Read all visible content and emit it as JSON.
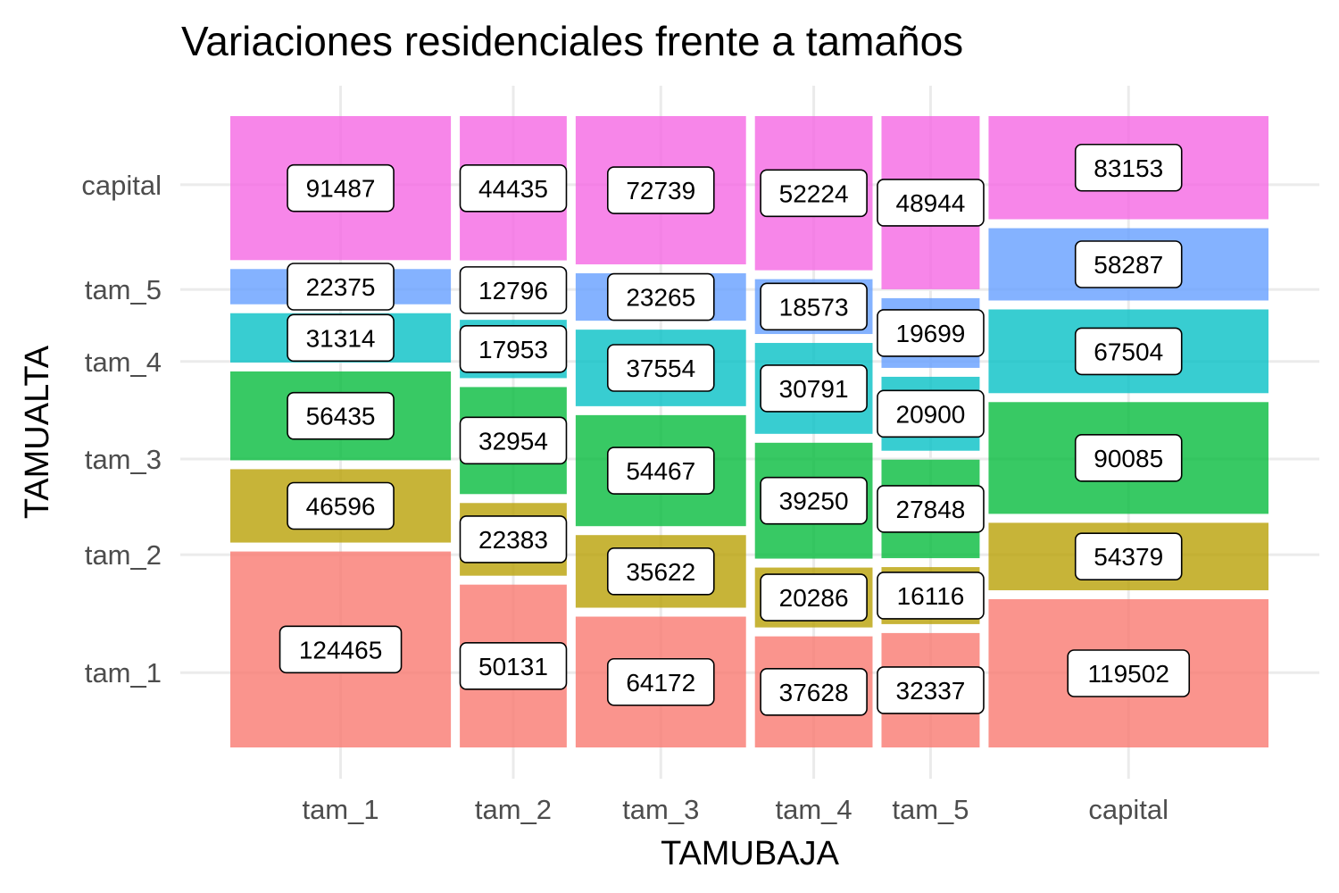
{
  "chart_data": {
    "type": "mosaic",
    "title": "Variaciones residenciales frente a tamaños",
    "xlabel": "TAMUBAJA",
    "ylabel": "TAMUALTA",
    "x_categories": [
      "tam_1",
      "tam_2",
      "tam_3",
      "tam_4",
      "tam_5",
      "capital"
    ],
    "y_categories": [
      "tam_1",
      "tam_2",
      "tam_3",
      "tam_4",
      "tam_5",
      "capital"
    ],
    "fill_colors": {
      "tam_1": "#F8766D",
      "tam_2": "#B79F00",
      "tam_3": "#00BA38",
      "tam_4": "#00BFC4",
      "tam_5": "#619CFF",
      "capital": "#F564E3"
    },
    "columns": [
      {
        "x": "tam_1",
        "values": [
          124465,
          46596,
          56435,
          31314,
          22375,
          91487
        ]
      },
      {
        "x": "tam_2",
        "values": [
          50131,
          22383,
          32954,
          17953,
          12796,
          44435
        ]
      },
      {
        "x": "tam_3",
        "values": [
          64172,
          35622,
          54467,
          37554,
          23265,
          72739
        ]
      },
      {
        "x": "tam_4",
        "values": [
          37628,
          20286,
          39250,
          30791,
          18573,
          52224
        ]
      },
      {
        "x": "tam_5",
        "values": [
          32337,
          16116,
          27848,
          20900,
          19699,
          48944
        ]
      },
      {
        "x": "capital",
        "values": [
          119502,
          54379,
          90085,
          67504,
          58287,
          83153
        ]
      }
    ],
    "legend": "none",
    "grid": true
  }
}
